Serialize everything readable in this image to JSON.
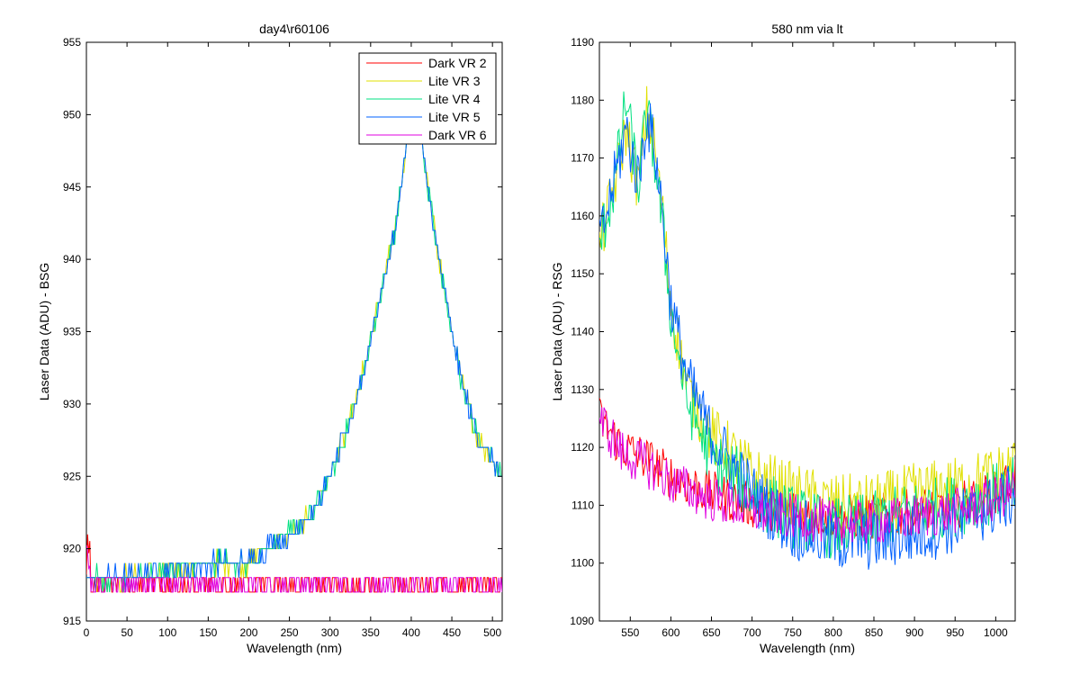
{
  "chart_data": [
    {
      "type": "line",
      "title": "day4\\r60106",
      "xlabel": "Wavelength (nm)",
      "ylabel": "Laser Data (ADU) - BSG",
      "xlim": [
        0,
        512
      ],
      "ylim": [
        915,
        955
      ],
      "xticks": [
        0,
        50,
        100,
        150,
        200,
        250,
        300,
        350,
        400,
        450,
        500
      ],
      "yticks": [
        915,
        920,
        925,
        930,
        935,
        940,
        945,
        950,
        955
      ],
      "legend_position": "top-right",
      "grid": false,
      "series": [
        {
          "name": "Dark VR 2",
          "color": "#ff0000",
          "x": [
            0,
            50,
            100,
            150,
            200,
            250,
            300,
            350,
            400,
            450,
            500,
            510
          ],
          "y": [
            918,
            918,
            918,
            918,
            918,
            918,
            918,
            918,
            918,
            918,
            918,
            918
          ]
        },
        {
          "name": "Lite VR 3",
          "color": "#e0e000",
          "x": [
            0,
            50,
            100,
            150,
            200,
            220,
            250,
            280,
            300,
            320,
            340,
            360,
            380,
            390,
            400,
            410,
            420,
            440,
            460,
            480,
            500,
            510
          ],
          "y": [
            918,
            918,
            918.5,
            919,
            919,
            920,
            921,
            922.5,
            925,
            928,
            932,
            937,
            942,
            946,
            951,
            950,
            945,
            938,
            932,
            928,
            926,
            925
          ]
        },
        {
          "name": "Lite VR 4",
          "color": "#00e080",
          "x": [
            0,
            50,
            100,
            150,
            200,
            220,
            250,
            280,
            300,
            320,
            340,
            360,
            380,
            390,
            400,
            410,
            420,
            440,
            460,
            480,
            500,
            510
          ],
          "y": [
            918,
            918,
            918.5,
            919,
            919,
            920,
            921,
            922.5,
            925,
            928,
            932,
            937,
            942,
            946,
            951,
            950,
            945,
            938,
            932,
            928,
            926,
            925
          ]
        },
        {
          "name": "Lite VR 5",
          "color": "#0060ff",
          "x": [
            0,
            50,
            100,
            150,
            200,
            220,
            250,
            280,
            300,
            320,
            340,
            360,
            380,
            390,
            400,
            410,
            420,
            440,
            460,
            480,
            500,
            510
          ],
          "y": [
            918,
            918,
            918.5,
            919,
            919,
            920,
            921,
            922.5,
            925,
            928,
            932,
            937,
            942,
            946,
            951,
            950,
            945,
            938,
            932,
            928,
            926,
            925
          ]
        },
        {
          "name": "Dark VR 6",
          "color": "#e000e0",
          "x": [
            0,
            50,
            100,
            150,
            200,
            250,
            300,
            350,
            400,
            450,
            500,
            510
          ],
          "y": [
            918,
            918,
            918,
            918,
            918,
            918,
            918,
            918,
            918,
            918,
            918,
            918
          ]
        }
      ]
    },
    {
      "type": "line",
      "title": "580 nm via lt",
      "xlabel": "Wavelength (nm)",
      "ylabel": "Laser Data (ADU) - RSG",
      "xlim": [
        512,
        1024
      ],
      "ylim": [
        1090,
        1190
      ],
      "xticks": [
        550,
        600,
        650,
        700,
        750,
        800,
        850,
        900,
        950,
        1000
      ],
      "yticks": [
        1090,
        1100,
        1110,
        1120,
        1130,
        1140,
        1150,
        1160,
        1170,
        1180,
        1190
      ],
      "grid": false,
      "series": [
        {
          "name": "Dark VR 2",
          "color": "#ff0000",
          "x": [
            512,
            540,
            570,
            600,
            650,
            700,
            750,
            800,
            850,
            900,
            950,
            1000,
            1024
          ],
          "y": [
            1125,
            1120,
            1118,
            1115,
            1112,
            1110,
            1109,
            1108,
            1108,
            1109,
            1110,
            1112,
            1115
          ]
        },
        {
          "name": "Lite VR 3",
          "color": "#e0e000",
          "x": [
            512,
            530,
            545,
            560,
            570,
            580,
            590,
            600,
            620,
            650,
            680,
            700,
            750,
            800,
            850,
            900,
            950,
            1000,
            1024
          ],
          "y": [
            1155,
            1165,
            1175,
            1165,
            1178,
            1172,
            1160,
            1145,
            1130,
            1122,
            1118,
            1115,
            1112,
            1110,
            1110,
            1112,
            1113,
            1115,
            1117
          ]
        },
        {
          "name": "Lite VR 4",
          "color": "#00e080",
          "x": [
            512,
            530,
            545,
            560,
            570,
            580,
            590,
            600,
            620,
            650,
            680,
            700,
            750,
            800,
            850,
            900,
            950,
            1000,
            1024
          ],
          "y": [
            1155,
            1165,
            1180,
            1165,
            1178,
            1170,
            1158,
            1143,
            1128,
            1118,
            1115,
            1112,
            1108,
            1106,
            1107,
            1109,
            1110,
            1112,
            1113
          ]
        },
        {
          "name": "Lite VR 5",
          "color": "#0060ff",
          "x": [
            512,
            530,
            545,
            560,
            570,
            580,
            590,
            600,
            620,
            650,
            680,
            700,
            750,
            800,
            850,
            900,
            950,
            1000,
            1024
          ],
          "y": [
            1155,
            1166,
            1175,
            1166,
            1177,
            1172,
            1160,
            1145,
            1132,
            1122,
            1116,
            1112,
            1106,
            1104,
            1104,
            1105,
            1107,
            1110,
            1112
          ]
        },
        {
          "name": "Dark VR 6",
          "color": "#e000e0",
          "x": [
            512,
            540,
            570,
            600,
            650,
            700,
            750,
            800,
            850,
            900,
            950,
            1000,
            1024
          ],
          "y": [
            1125,
            1119,
            1117,
            1114,
            1111,
            1109,
            1108,
            1107,
            1107,
            1108,
            1109,
            1111,
            1113
          ]
        }
      ]
    }
  ]
}
